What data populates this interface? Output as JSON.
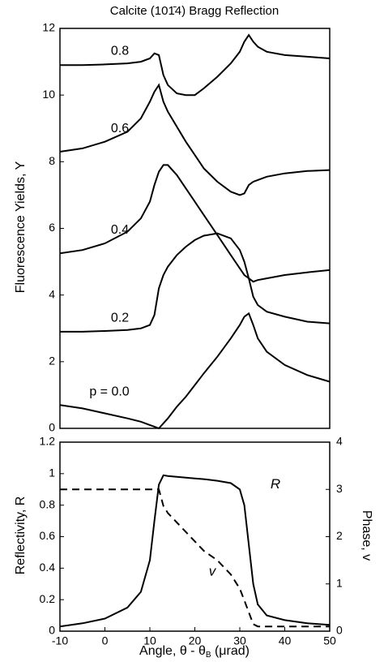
{
  "chart_data": [
    {
      "type": "line",
      "title": "Calcite (101̄4) Bragg Reflection",
      "y_label": "Fluorescence Yields, Y",
      "x": [
        -10,
        -5,
        0,
        5,
        8,
        10,
        11,
        12,
        13,
        14,
        16,
        18,
        20,
        22,
        25,
        28,
        30,
        31,
        32,
        33,
        34,
        36,
        40,
        45,
        50
      ],
      "xlim": [
        -10,
        50
      ],
      "ylim": [
        0,
        12
      ],
      "yticks": [
        0,
        2,
        4,
        6,
        8,
        10,
        12
      ],
      "series": [
        {
          "name": "p = 0.0",
          "color": "#000000",
          "values": [
            0.7,
            0.6,
            0.45,
            0.3,
            0.2,
            0.1,
            0.05,
            0.0,
            0.15,
            0.3,
            0.65,
            0.95,
            1.3,
            1.65,
            2.15,
            2.7,
            3.1,
            3.35,
            3.45,
            3.1,
            2.7,
            2.3,
            1.9,
            1.6,
            1.4
          ]
        },
        {
          "name": "0.2",
          "color": "#000000",
          "values": [
            2.9,
            2.9,
            2.92,
            2.95,
            3.0,
            3.1,
            3.4,
            4.2,
            4.6,
            4.85,
            5.2,
            5.45,
            5.65,
            5.78,
            5.85,
            5.7,
            5.35,
            5.0,
            4.5,
            3.95,
            3.7,
            3.5,
            3.35,
            3.2,
            3.15
          ]
        },
        {
          "name": "0.4",
          "color": "#000000",
          "values": [
            5.25,
            5.35,
            5.55,
            5.9,
            6.3,
            6.8,
            7.3,
            7.7,
            7.9,
            7.9,
            7.6,
            7.2,
            6.8,
            6.4,
            5.8,
            5.2,
            4.8,
            4.6,
            4.5,
            4.4,
            4.45,
            4.5,
            4.6,
            4.68,
            4.75
          ]
        },
        {
          "name": "0.6",
          "color": "#000000",
          "values": [
            8.3,
            8.4,
            8.6,
            8.9,
            9.3,
            9.8,
            10.1,
            10.3,
            9.8,
            9.5,
            9.05,
            8.6,
            8.2,
            7.8,
            7.4,
            7.1,
            7.0,
            7.05,
            7.3,
            7.4,
            7.45,
            7.55,
            7.65,
            7.72,
            7.75
          ]
        },
        {
          "name": "0.8",
          "color": "#000000",
          "values": [
            10.9,
            10.9,
            10.92,
            10.95,
            11.0,
            11.1,
            11.25,
            11.2,
            10.6,
            10.3,
            10.05,
            10.0,
            10.0,
            10.2,
            10.55,
            10.95,
            11.3,
            11.6,
            11.8,
            11.6,
            11.45,
            11.3,
            11.2,
            11.15,
            11.1
          ]
        }
      ]
    },
    {
      "type": "line",
      "y_label": "Reflectivity, R",
      "y2_label": "Phase, v",
      "x_label": {
        "main": "Angle, θ - θ",
        "sub": "B",
        "end": " (μrad)"
      },
      "x": [
        -10,
        -5,
        0,
        5,
        8,
        10,
        11,
        12,
        13,
        14,
        16,
        18,
        20,
        22,
        25,
        28,
        30,
        31,
        32,
        33,
        34,
        36,
        40,
        45,
        50
      ],
      "xlim": [
        -10,
        50
      ],
      "xticks": [
        -10,
        0,
        10,
        20,
        30,
        40,
        50
      ],
      "ylim": [
        0,
        1.2
      ],
      "yticks": [
        0,
        0.2,
        0.4,
        0.6,
        0.8,
        1,
        1.2
      ],
      "y2lim": [
        0,
        4
      ],
      "y2ticks": [
        0,
        1,
        2,
        3,
        4
      ],
      "series": [
        {
          "name": "R",
          "color": "#000000",
          "line_style": "solid",
          "values": [
            0.03,
            0.05,
            0.08,
            0.15,
            0.25,
            0.45,
            0.7,
            0.93,
            0.99,
            0.985,
            0.98,
            0.975,
            0.97,
            0.965,
            0.955,
            0.94,
            0.9,
            0.8,
            0.55,
            0.3,
            0.17,
            0.1,
            0.07,
            0.05,
            0.04
          ]
        },
        {
          "name": "v",
          "color": "#000000",
          "line_style": "dashed",
          "axis": "y2",
          "values": [
            3.0,
            3.0,
            3.0,
            3.0,
            3.0,
            3.0,
            3.0,
            3.0,
            2.65,
            2.5,
            2.3,
            2.1,
            1.9,
            1.7,
            1.5,
            1.2,
            0.9,
            0.65,
            0.4,
            0.15,
            0.1,
            0.1,
            0.1,
            0.1,
            0.1
          ]
        }
      ]
    }
  ]
}
